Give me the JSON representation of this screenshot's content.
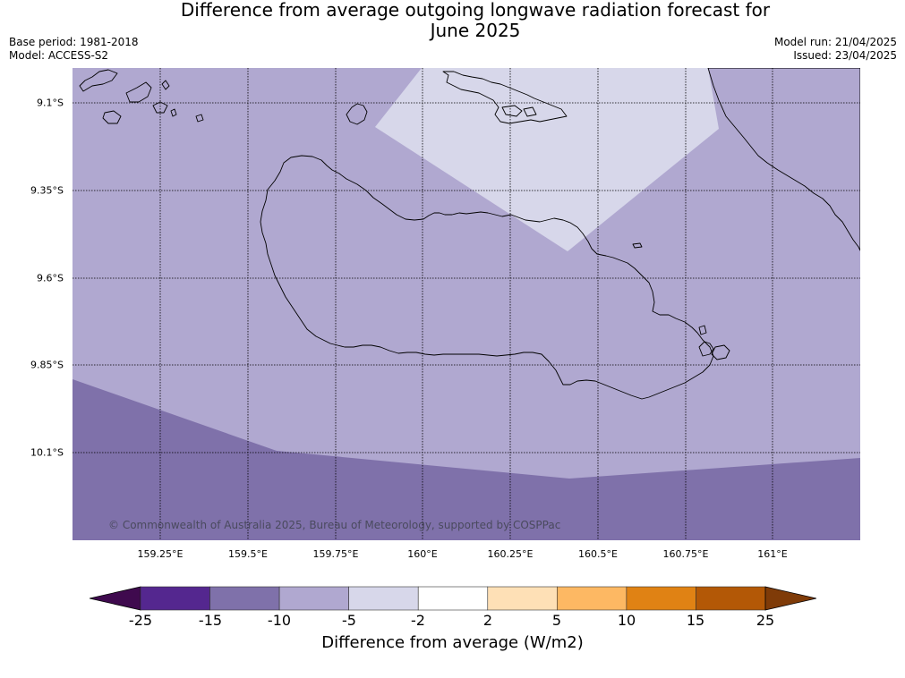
{
  "title_line1": "Difference from average outgoing longwave radiation forecast for",
  "title_line2": "June 2025",
  "base_period": "Base period: 1981-2018",
  "model": "Model: ACCESS-S2",
  "model_run": "Model run: 21/04/2025",
  "issued": "Issued: 23/04/2025",
  "copyright": "© Commonwealth of Australia 2025, Bureau of Meteorology, supported by COSPPac",
  "lat_labels": [
    "9.1°S",
    "9.35°S",
    "9.6°S",
    "9.85°S",
    "10.1°S"
  ],
  "lon_labels": [
    "159.25°E",
    "159.5°E",
    "159.75°E",
    "160°E",
    "160.25°E",
    "160.5°E",
    "160.75°E",
    "161°E"
  ],
  "colorbar": {
    "ticks": [
      "-25",
      "-15",
      "-10",
      "-5",
      "-2",
      "2",
      "5",
      "10",
      "15",
      "25"
    ],
    "label": "Difference from average (W/m2)",
    "colors": {
      "below_min": "#3f0a4e",
      "bins": [
        "#54278f",
        "#7f71aa",
        "#b0a8d0",
        "#d7d7ea",
        "#ffffff",
        "#fee0b6",
        "#fdb863",
        "#e08214",
        "#b35806"
      ],
      "above_max": "#7f3b08"
    }
  },
  "map_colors": {
    "band_minus_5_to_minus_10": "#b0a8d0",
    "band_minus_2_to_minus_5": "#d7d7ea",
    "band_minus_10_to_minus_15": "#7f71aa",
    "coastline": "#000000",
    "gridline": "#000000"
  }
}
